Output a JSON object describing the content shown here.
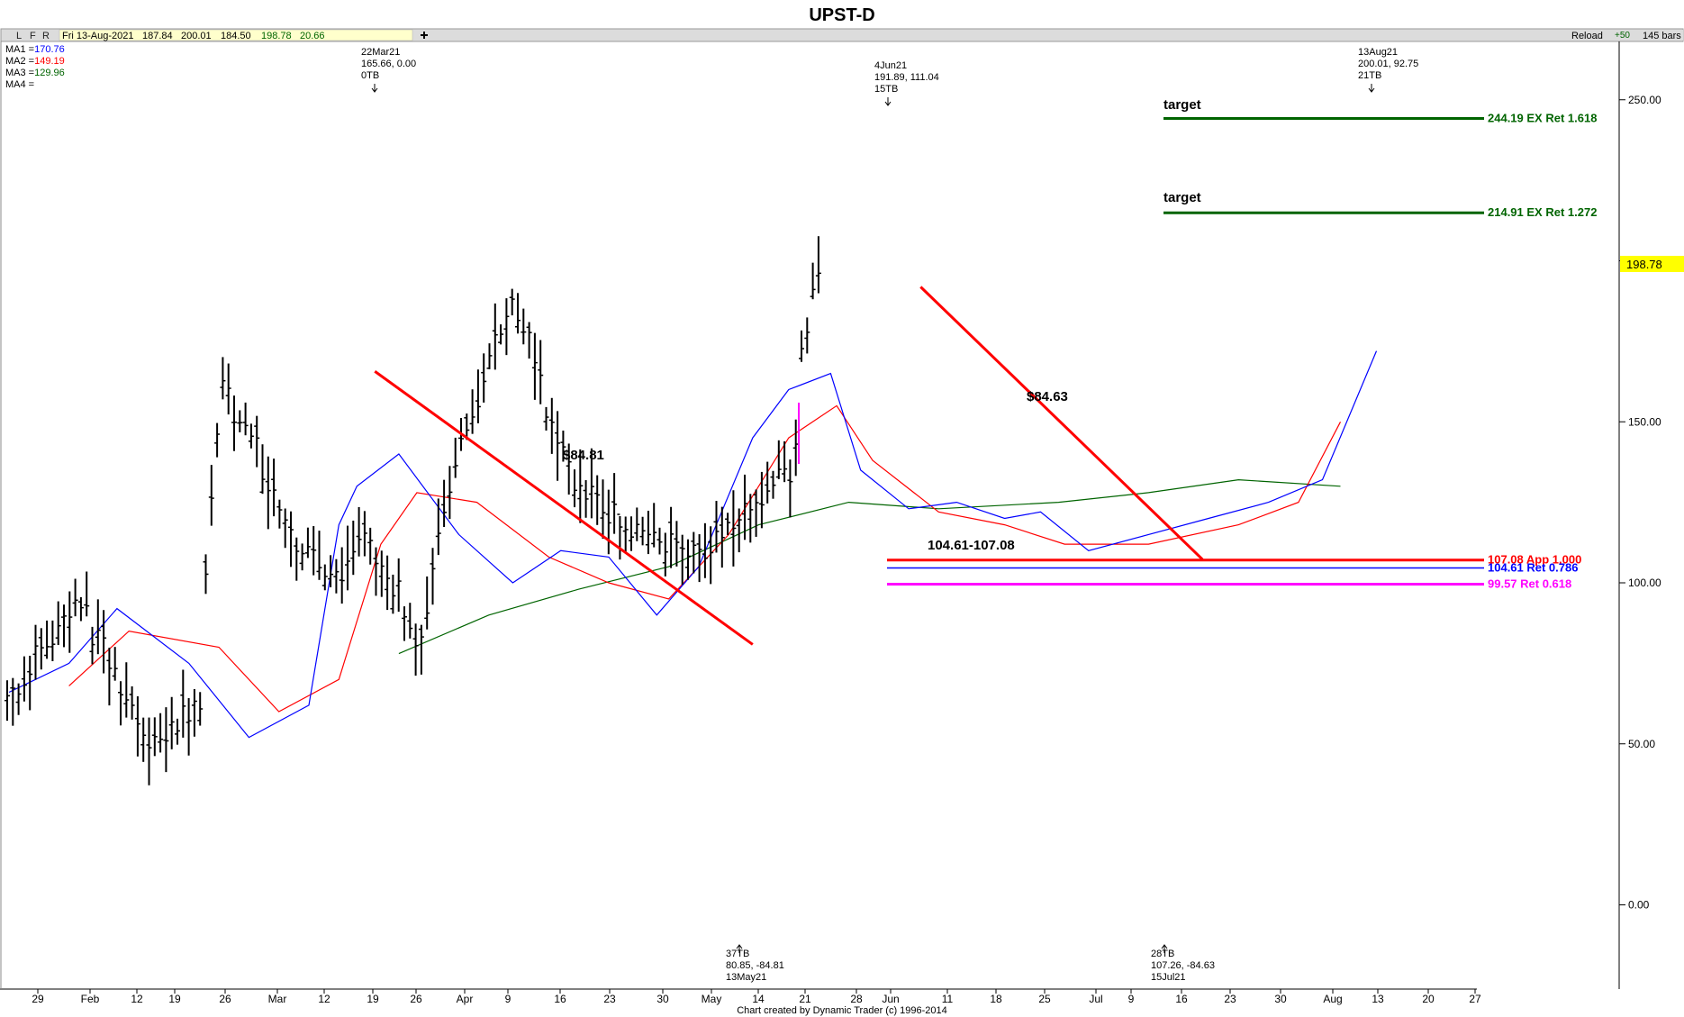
{
  "window": {
    "title": "UPST-D"
  },
  "toolbar": {
    "buttons": [
      "L",
      "F",
      "R"
    ],
    "info_date": "Fri 13-Aug-2021",
    "info_open": "187.84",
    "info_high": "200.01",
    "info_low": "184.50",
    "info_close": "198.78",
    "info_change": "20.66",
    "plus_icon": "plus-icon",
    "reload_label": "Reload",
    "zoom_label": "+50",
    "bars_label": "145 bars"
  },
  "ma_legend": [
    {
      "label": "MA1 =",
      "value": "170.76",
      "color": "#0000ff"
    },
    {
      "label": "MA2 =",
      "value": "149.19",
      "color": "#ff0000"
    },
    {
      "label": "MA3 =",
      "value": "129.96",
      "color": "#006400"
    },
    {
      "label": "MA4 =",
      "value": "",
      "color": "#000000"
    }
  ],
  "footer": {
    "credit": "Chart created by Dynamic Trader  (c) 1996-2014"
  },
  "chart_data": {
    "type": "ohlc",
    "title": "UPST-D",
    "ylim": [
      -25,
      265
    ],
    "y_ticks": [
      {
        "value": 250,
        "label": "250.00"
      },
      {
        "value": 200,
        "label": "200.00"
      },
      {
        "value": 150,
        "label": "150.00"
      },
      {
        "value": 100,
        "label": "100.00"
      },
      {
        "value": 50,
        "label": "50.00"
      },
      {
        "value": 0,
        "label": "0.00"
      }
    ],
    "x_labels": [
      "29",
      "Feb",
      "12",
      "19",
      "26",
      "Mar",
      "12",
      "19",
      "26",
      "Apr",
      "9",
      "16",
      "23",
      "30",
      "May",
      "14",
      "21",
      "28",
      "Jun",
      "11",
      "18",
      "25",
      "Jul",
      "9",
      "16",
      "23",
      "30",
      "Aug",
      "13",
      "20",
      "27"
    ],
    "last_price": {
      "value": 198.78,
      "label": "198.78"
    },
    "bars_count": 145,
    "series_labels": [
      {
        "name": "MA1",
        "color": "#0000ff"
      },
      {
        "name": "MA2",
        "color": "#ff0000"
      },
      {
        "name": "MA3",
        "color": "#006400"
      }
    ],
    "price_key_points": [
      {
        "date": "2021-01-15",
        "value": 65
      },
      {
        "date": "2021-02-12",
        "value": 95
      },
      {
        "date": "2021-03-03",
        "value": 50
      },
      {
        "date": "2021-03-17",
        "value": 62
      },
      {
        "date": "2021-03-22",
        "value": 165.66
      },
      {
        "date": "2021-04-09",
        "value": 120
      },
      {
        "date": "2021-04-20",
        "value": 100
      },
      {
        "date": "2021-04-30",
        "value": 115
      },
      {
        "date": "2021-05-13",
        "value": 80.85
      },
      {
        "date": "2021-05-21",
        "value": 140
      },
      {
        "date": "2021-06-04",
        "value": 191.89
      },
      {
        "date": "2021-06-11",
        "value": 130
      },
      {
        "date": "2021-06-25",
        "value": 122
      },
      {
        "date": "2021-07-15",
        "value": 107.26
      },
      {
        "date": "2021-07-27",
        "value": 118
      },
      {
        "date": "2021-08-06",
        "value": 135
      },
      {
        "date": "2021-08-13",
        "value": 198.78
      }
    ],
    "ma_points": {
      "MA1": [
        [
          0,
          66
        ],
        [
          10,
          75
        ],
        [
          18,
          92
        ],
        [
          30,
          75
        ],
        [
          40,
          52
        ],
        [
          50,
          62
        ],
        [
          55,
          118
        ],
        [
          58,
          130
        ],
        [
          65,
          140
        ],
        [
          75,
          115
        ],
        [
          84,
          100
        ],
        [
          92,
          110
        ],
        [
          100,
          108
        ],
        [
          108,
          90
        ],
        [
          115,
          105
        ],
        [
          124,
          145
        ],
        [
          130,
          160
        ],
        [
          137,
          165
        ],
        [
          142,
          135
        ],
        [
          150,
          123
        ],
        [
          158,
          125
        ],
        [
          166,
          120
        ],
        [
          172,
          122
        ],
        [
          180,
          110
        ],
        [
          190,
          115
        ],
        [
          200,
          120
        ],
        [
          210,
          125
        ],
        [
          219,
          132
        ],
        [
          228,
          172
        ]
      ],
      "MA2": [
        [
          10,
          68
        ],
        [
          20,
          85
        ],
        [
          35,
          80
        ],
        [
          45,
          60
        ],
        [
          55,
          70
        ],
        [
          62,
          112
        ],
        [
          68,
          128
        ],
        [
          78,
          125
        ],
        [
          90,
          108
        ],
        [
          100,
          100
        ],
        [
          110,
          95
        ],
        [
          120,
          115
        ],
        [
          130,
          145
        ],
        [
          138,
          155
        ],
        [
          144,
          138
        ],
        [
          155,
          122
        ],
        [
          166,
          118
        ],
        [
          176,
          112
        ],
        [
          190,
          112
        ],
        [
          205,
          118
        ],
        [
          215,
          125
        ],
        [
          222,
          150
        ]
      ],
      "MA3": [
        [
          65,
          78
        ],
        [
          80,
          90
        ],
        [
          95,
          98
        ],
        [
          110,
          105
        ],
        [
          125,
          118
        ],
        [
          140,
          125
        ],
        [
          155,
          123
        ],
        [
          175,
          125
        ],
        [
          190,
          128
        ],
        [
          205,
          132
        ],
        [
          222,
          130
        ]
      ]
    },
    "trend_lines": [
      {
        "from": [
          61,
          165.66
        ],
        "to": [
          124,
          80.85
        ],
        "color": "#ff0000",
        "label": "$84.81"
      },
      {
        "from": [
          152,
          191.89
        ],
        "to": [
          199,
          107.26
        ],
        "color": "#ff0000",
        "label": "$84.63"
      }
    ],
    "annotations": [
      {
        "text": "target",
        "bold": true
      },
      {
        "text": "target",
        "bold": true
      },
      {
        "text": "$84.81",
        "bold": true
      },
      {
        "text": "$84.63",
        "bold": true
      },
      {
        "text": "104.61-107.08",
        "bold": true
      }
    ],
    "horizontal_levels": [
      {
        "value": 244.19,
        "label": "244.19 EX Ret 1.618",
        "color": "#006400"
      },
      {
        "value": 214.91,
        "label": "214.91 EX Ret 1.272",
        "color": "#006400"
      },
      {
        "value": 107.08,
        "label": "107.08 App 1.000",
        "color": "#ff0000"
      },
      {
        "value": 104.61,
        "label": "104.61 Ret 0.786",
        "color": "#0000ff"
      },
      {
        "value": 99.57,
        "label": "99.57 Ret 0.618",
        "color": "#ff00ff"
      }
    ],
    "pivot_labels": [
      {
        "lines": [
          "22Mar21",
          "165.66, 0.00",
          "0TB"
        ],
        "position": "top"
      },
      {
        "lines": [
          "4Jun21",
          "191.89, 111.04",
          "15TB"
        ],
        "position": "top"
      },
      {
        "lines": [
          "13Aug21",
          "200.01, 92.75",
          "21TB"
        ],
        "position": "top"
      },
      {
        "lines": [
          "37TB",
          "80.85, -84.81",
          "13May21"
        ],
        "position": "bottom"
      },
      {
        "lines": [
          "28TB",
          "107.26, -84.63",
          "15Jul21"
        ],
        "position": "bottom"
      }
    ]
  }
}
